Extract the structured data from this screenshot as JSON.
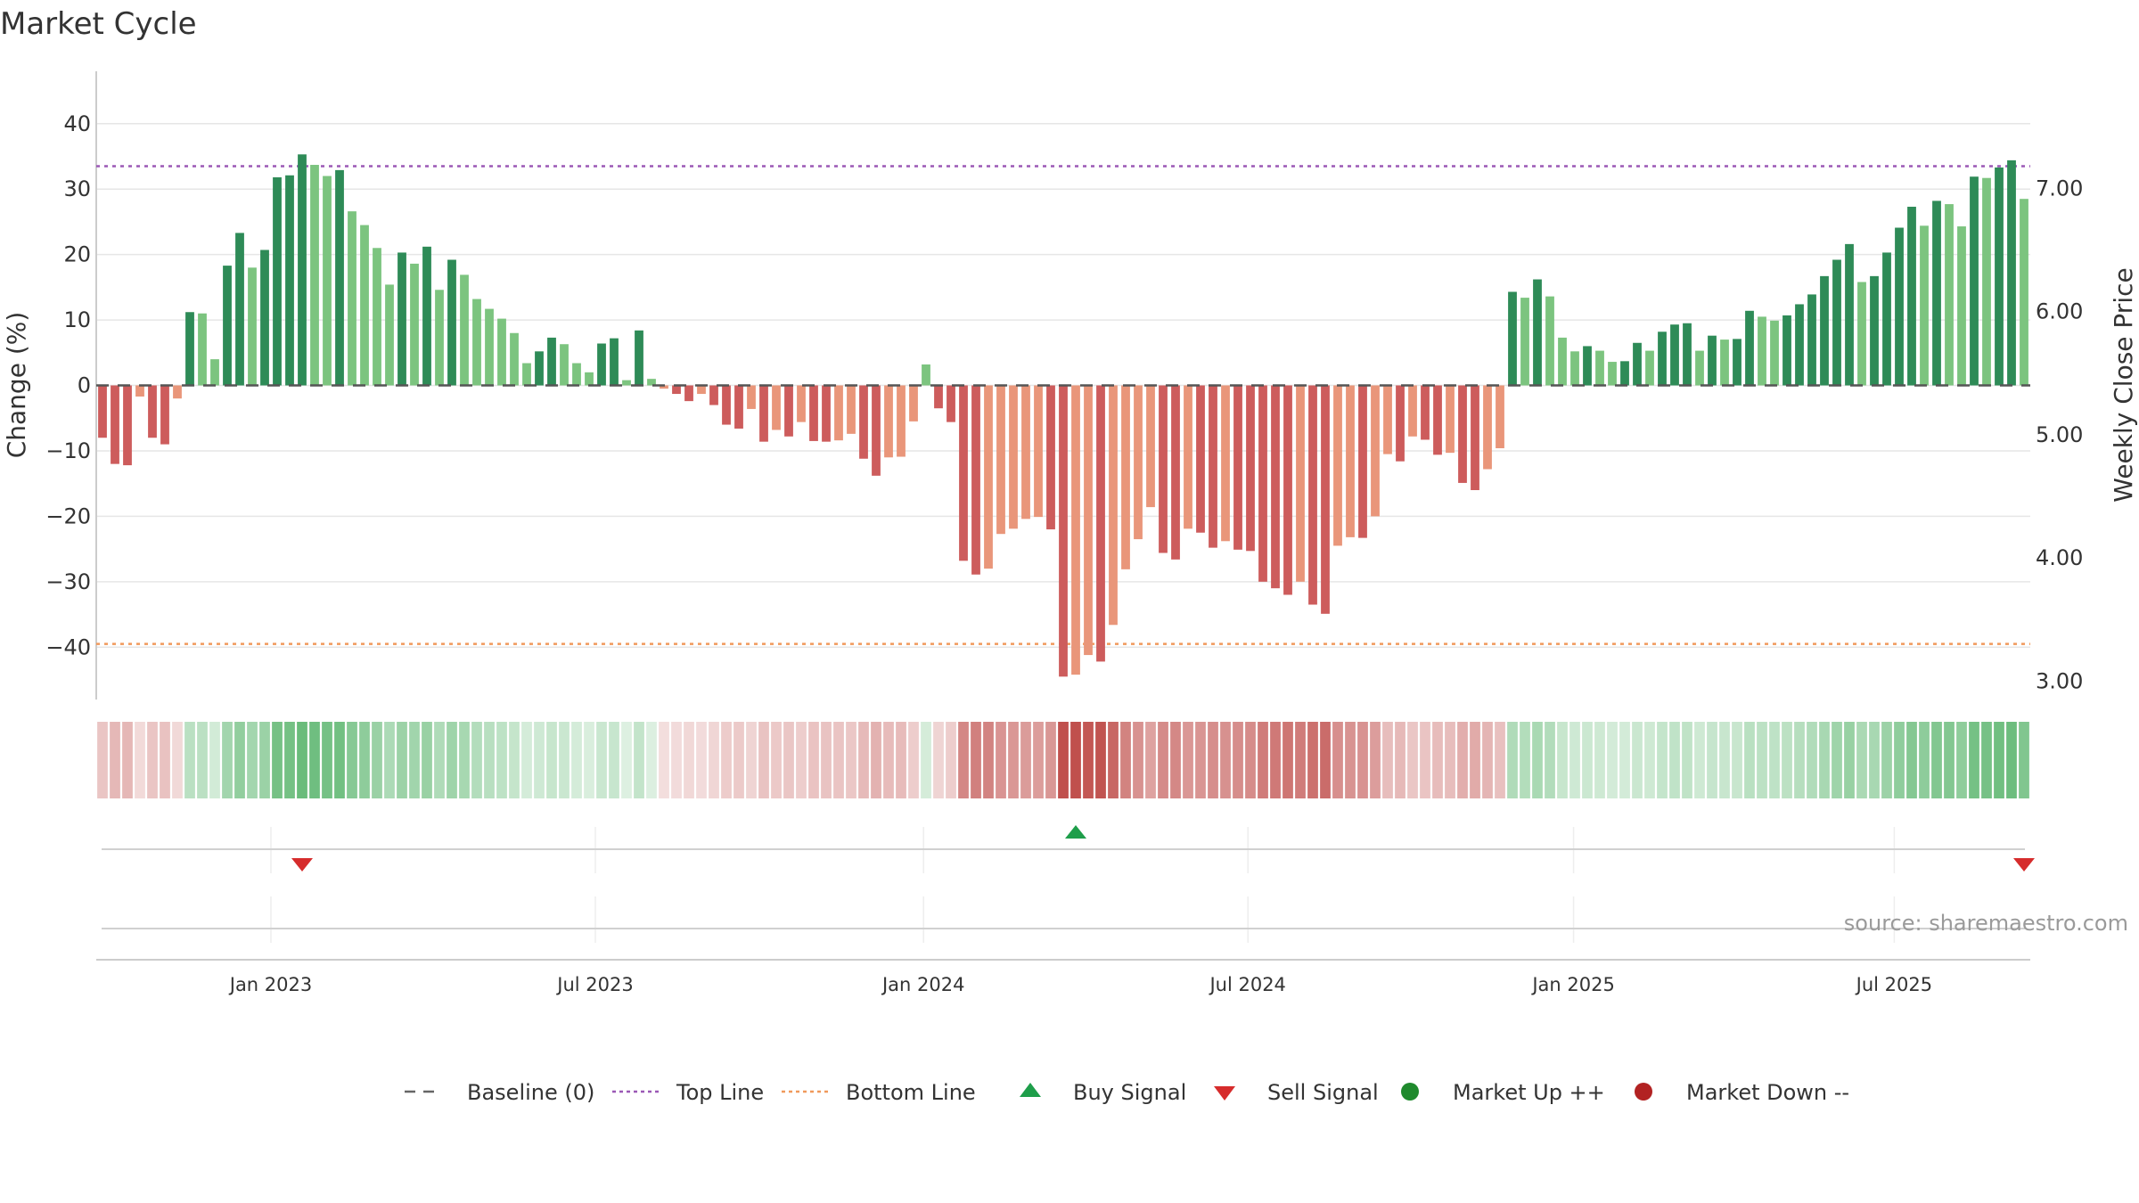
{
  "chart_data": {
    "type": "bar",
    "title": "Market Cycle",
    "ylabel": "Change (%)",
    "ylabel_right": "Weekly Close Price",
    "ylim": [
      -48,
      48
    ],
    "ylim_right": [
      2.85,
      7.95
    ],
    "y_ticks": [
      "40",
      "30",
      "20",
      "10",
      "0",
      "−10",
      "−20",
      "−30",
      "−40"
    ],
    "y_tick_values": [
      40,
      30,
      20,
      10,
      0,
      -10,
      -20,
      -30,
      -40
    ],
    "y_right_ticks": [
      "7.00",
      "6.00",
      "5.00",
      "4.00",
      "3.00"
    ],
    "y_right_tick_values": [
      7,
      6,
      5,
      4,
      3
    ],
    "top_line": 33.5,
    "bottom_line": -39.5,
    "x_ticks": [
      "Jan 2023",
      "Jul 2023",
      "Jan 2024",
      "Jul 2024",
      "Jan 2025",
      "Jul 2025"
    ],
    "x_tick_weeks": [
      14,
      40,
      66.3,
      92.3,
      118.4,
      144.1
    ],
    "grid": true,
    "legend_position": "bottom",
    "values": [
      -8,
      -12,
      -12.2,
      -1.7,
      -8,
      -9,
      -2,
      11.2,
      11,
      4,
      18.3,
      23.3,
      18,
      20.7,
      31.8,
      32.1,
      35.3,
      33.7,
      32,
      32.9,
      26.6,
      24.5,
      21,
      15.4,
      20.3,
      18.6,
      21.2,
      14.6,
      19.2,
      16.9,
      13.2,
      11.7,
      10.2,
      8,
      3.4,
      5.2,
      7.3,
      6.3,
      3.4,
      2,
      6.4,
      7.2,
      0.8,
      8.4,
      1,
      -0.5,
      -1.3,
      -2.4,
      -1.3,
      -3,
      -6,
      -6.6,
      -3.6,
      -8.6,
      -6.8,
      -7.8,
      -5.6,
      -8.5,
      -8.6,
      -8.4,
      -7.4,
      -11.2,
      -13.8,
      -11,
      -10.9,
      -5.5,
      3.2,
      -3.5,
      -5.6,
      -26.8,
      -28.9,
      -28,
      -22.7,
      -21.9,
      -20.4,
      -20.1,
      -22,
      -44.5,
      -44.2,
      -41.2,
      -42.2,
      -36.6,
      -28.1,
      -23.5,
      -18.6,
      -25.6,
      -26.6,
      -21.9,
      -22.5,
      -24.8,
      -23.8,
      -25.1,
      -25.3,
      -30,
      -31,
      -32,
      -30,
      -33.5,
      -34.9,
      -24.5,
      -23.2,
      -23.3,
      -20,
      -10.5,
      -11.6,
      -7.8,
      -8.3,
      -10.6,
      -10.3,
      -14.9,
      -16,
      -12.8,
      -9.6,
      14.3,
      13.4,
      16.2,
      13.6,
      7.3,
      5.2,
      6,
      5.3,
      3.6,
      3.7,
      6.5,
      5.3,
      8.2,
      9.3,
      9.5,
      5.3,
      7.6,
      7,
      7.1,
      11.4,
      10.5,
      9.9,
      10.7,
      12.4,
      13.9,
      16.7,
      19.2,
      21.6,
      15.8,
      16.7,
      20.3,
      24.1,
      27.3,
      24.4,
      28.2,
      27.7,
      24.3,
      31.9,
      31.7,
      33.3,
      34.4,
      28.5
    ],
    "price_line": {
      "name": "Weekly Close Price"
    },
    "buy_signals_week": [
      78
    ],
    "sell_signals_week": [
      16,
      154
    ],
    "series_legend": [
      {
        "name": "Baseline (0)",
        "color": "#666666",
        "style": "dash"
      },
      {
        "name": "Top Line",
        "color": "#9b59b6",
        "style": "dot"
      },
      {
        "name": "Bottom Line",
        "color": "#f0995c",
        "style": "dot"
      },
      {
        "name": "Buy Signal",
        "color": "#1e9e4a",
        "style": "triangle-up"
      },
      {
        "name": "Sell Signal",
        "color": "#d62c2c",
        "style": "triangle-down"
      },
      {
        "name": "Market Up ++",
        "color": "#1f8a2d",
        "style": "circle"
      },
      {
        "name": "Market Down --",
        "color": "#b22222",
        "style": "circle"
      }
    ]
  },
  "colors": {
    "up_strong": "#2e8b57",
    "up_weak": "#7cc47f",
    "down_strong": "#cd5c5c",
    "down_weak": "#e9967a",
    "grid": "#e6e6e6",
    "axis": "#cccccc"
  },
  "source_text": "source: sharemaestro.com"
}
